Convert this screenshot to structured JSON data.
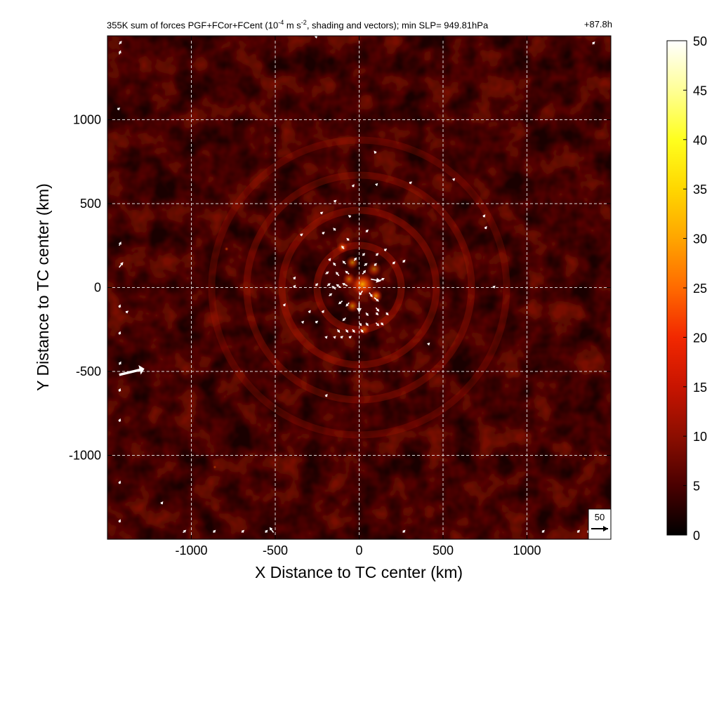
{
  "chart_data": {
    "type": "heatmap",
    "title": {
      "prefix": "355K sum of forces PGF+FCor+FCent (10",
      "exp1": "-4",
      "mid": " m s",
      "exp2": "-2",
      "suffix": ", shading and vectors); min SLP= 949.81hPa",
      "time": "+87.8h"
    },
    "xlabel": "X Distance to TC center (km)",
    "ylabel": "Y Distance to TC center (km)",
    "xlim": [
      -1500,
      1500
    ],
    "ylim": [
      -1500,
      1500
    ],
    "x_ticks": [
      -1000,
      -500,
      0,
      500,
      1000
    ],
    "y_ticks": [
      -1000,
      -500,
      0,
      500,
      1000
    ],
    "grid": true,
    "colorbar": {
      "range": [
        0,
        50
      ],
      "ticks": [
        0,
        5,
        10,
        15,
        20,
        25,
        30,
        35,
        40,
        45,
        50
      ],
      "colors": [
        "#000000",
        "#4a0000",
        "#8c0e00",
        "#c81400",
        "#f22800",
        "#ff6a00",
        "#ffa500",
        "#ffd700",
        "#ffff1e",
        "#ffff96",
        "#ffffff"
      ]
    },
    "reference_vector": {
      "label": "50",
      "magnitude": 50
    },
    "vectors": [
      {
        "x": -1430,
        "y": 1450,
        "u": 8,
        "v": 10
      },
      {
        "x": -1430,
        "y": 1390,
        "u": 5,
        "v": 12
      },
      {
        "x": -1430,
        "y": 250,
        "u": 6,
        "v": 12
      },
      {
        "x": -1430,
        "y": 120,
        "u": 12,
        "v": 16
      },
      {
        "x": -1430,
        "y": -120,
        "u": 4,
        "v": 10
      },
      {
        "x": -1430,
        "y": -280,
        "u": 4,
        "v": 10
      },
      {
        "x": -1430,
        "y": -460,
        "u": 6,
        "v": 10
      },
      {
        "x": -1430,
        "y": -520,
        "u": 75,
        "v": 18
      },
      {
        "x": -1430,
        "y": -620,
        "u": 4,
        "v": 10
      },
      {
        "x": -1430,
        "y": -800,
        "u": 4,
        "v": 10
      },
      {
        "x": -1430,
        "y": -1170,
        "u": 4,
        "v": 10
      },
      {
        "x": -1430,
        "y": -1400,
        "u": 4,
        "v": 10
      },
      {
        "x": -1440,
        "y": 1060,
        "u": 8,
        "v": 6
      },
      {
        "x": -1390,
        "y": -150,
        "u": 8,
        "v": 6
      },
      {
        "x": -1180,
        "y": -1290,
        "u": 6,
        "v": 8
      },
      {
        "x": -1050,
        "y": -1460,
        "u": 10,
        "v": 8
      },
      {
        "x": -510,
        "y": -1460,
        "u": -12,
        "v": 16
      },
      {
        "x": -700,
        "y": -1460,
        "u": 8,
        "v": 8
      },
      {
        "x": -260,
        "y": 1490,
        "u": 6,
        "v": 6
      },
      {
        "x": 100,
        "y": 800,
        "u": -6,
        "v": 8
      },
      {
        "x": -40,
        "y": 600,
        "u": 6,
        "v": 8
      },
      {
        "x": 100,
        "y": 610,
        "u": 6,
        "v": 6
      },
      {
        "x": 300,
        "y": 620,
        "u": 8,
        "v": 6
      },
      {
        "x": 560,
        "y": 640,
        "u": 6,
        "v": 6
      },
      {
        "x": 740,
        "y": 420,
        "u": 6,
        "v": 8
      },
      {
        "x": 750,
        "y": 350,
        "u": 6,
        "v": 8
      },
      {
        "x": -150,
        "y": 510,
        "u": 8,
        "v": 6
      },
      {
        "x": -230,
        "y": 440,
        "u": 8,
        "v": 6
      },
      {
        "x": -50,
        "y": 420,
        "u": -8,
        "v": 6
      },
      {
        "x": -350,
        "y": 310,
        "u": 8,
        "v": 6
      },
      {
        "x": -220,
        "y": 320,
        "u": 8,
        "v": 6
      },
      {
        "x": -140,
        "y": 340,
        "u": -8,
        "v": 8
      },
      {
        "x": 40,
        "y": 330,
        "u": 8,
        "v": 8
      },
      {
        "x": -60,
        "y": 280,
        "u": -8,
        "v": 8
      },
      {
        "x": -90,
        "y": 230,
        "u": -8,
        "v": 10
      },
      {
        "x": 20,
        "y": 190,
        "u": 8,
        "v": 8
      },
      {
        "x": 100,
        "y": 190,
        "u": 8,
        "v": 8
      },
      {
        "x": 150,
        "y": 220,
        "u": 8,
        "v": 6
      },
      {
        "x": -180,
        "y": 160,
        "u": 6,
        "v": 8
      },
      {
        "x": -140,
        "y": 130,
        "u": -8,
        "v": 10
      },
      {
        "x": -80,
        "y": 140,
        "u": -10,
        "v": 10
      },
      {
        "x": -30,
        "y": 160,
        "u": 8,
        "v": 10
      },
      {
        "x": 30,
        "y": 130,
        "u": 10,
        "v": 8
      },
      {
        "x": 90,
        "y": 130,
        "u": 8,
        "v": 8
      },
      {
        "x": 200,
        "y": 140,
        "u": 8,
        "v": 8
      },
      {
        "x": 260,
        "y": 150,
        "u": 8,
        "v": 8
      },
      {
        "x": -200,
        "y": 80,
        "u": 10,
        "v": 8
      },
      {
        "x": -120,
        "y": 70,
        "u": -10,
        "v": 12
      },
      {
        "x": -60,
        "y": 80,
        "u": -12,
        "v": 10
      },
      {
        "x": 20,
        "y": 80,
        "u": 10,
        "v": 12
      },
      {
        "x": 70,
        "y": 50,
        "u": 30,
        "v": -6
      },
      {
        "x": 120,
        "y": 40,
        "u": 16,
        "v": 8
      },
      {
        "x": -390,
        "y": 50,
        "u": 6,
        "v": 8
      },
      {
        "x": -390,
        "y": 0,
        "u": 6,
        "v": 8
      },
      {
        "x": -260,
        "y": 10,
        "u": 8,
        "v": 8
      },
      {
        "x": -190,
        "y": 10,
        "u": 10,
        "v": 8
      },
      {
        "x": -140,
        "y": -10,
        "u": -12,
        "v": 10
      },
      {
        "x": -110,
        "y": 0,
        "u": -14,
        "v": 10
      },
      {
        "x": -70,
        "y": 10,
        "u": -16,
        "v": 8
      },
      {
        "x": 20,
        "y": -20,
        "u": -10,
        "v": -14
      },
      {
        "x": 60,
        "y": -30,
        "u": 10,
        "v": -14
      },
      {
        "x": 90,
        "y": -60,
        "u": 14,
        "v": -12
      },
      {
        "x": -180,
        "y": -50,
        "u": 10,
        "v": 8
      },
      {
        "x": -100,
        "y": -80,
        "u": -12,
        "v": -10
      },
      {
        "x": -60,
        "y": -90,
        "u": -10,
        "v": -12
      },
      {
        "x": 0,
        "y": -90,
        "u": 0,
        "v": -30
      },
      {
        "x": 100,
        "y": -120,
        "u": 10,
        "v": -12
      },
      {
        "x": -450,
        "y": -110,
        "u": 6,
        "v": 8
      },
      {
        "x": -300,
        "y": -150,
        "u": 6,
        "v": 8
      },
      {
        "x": -220,
        "y": -150,
        "u": 6,
        "v": 8
      },
      {
        "x": -80,
        "y": -180,
        "u": -10,
        "v": -10
      },
      {
        "x": 40,
        "y": -150,
        "u": 8,
        "v": -10
      },
      {
        "x": 100,
        "y": -150,
        "u": 8,
        "v": -8
      },
      {
        "x": 160,
        "y": -150,
        "u": 8,
        "v": -8
      },
      {
        "x": -340,
        "y": -210,
        "u": 6,
        "v": 6
      },
      {
        "x": -260,
        "y": -210,
        "u": 8,
        "v": 6
      },
      {
        "x": 0,
        "y": -210,
        "u": 8,
        "v": -10
      },
      {
        "x": 40,
        "y": -210,
        "u": 8,
        "v": -10
      },
      {
        "x": 100,
        "y": -210,
        "u": 10,
        "v": -10
      },
      {
        "x": 130,
        "y": -210,
        "u": 8,
        "v": -8
      },
      {
        "x": -130,
        "y": -250,
        "u": 8,
        "v": -10
      },
      {
        "x": -80,
        "y": -250,
        "u": 8,
        "v": -10
      },
      {
        "x": -40,
        "y": -250,
        "u": 8,
        "v": -10
      },
      {
        "x": 10,
        "y": -250,
        "u": 8,
        "v": -10
      },
      {
        "x": -200,
        "y": -300,
        "u": 6,
        "v": 6
      },
      {
        "x": -150,
        "y": -300,
        "u": 6,
        "v": 6
      },
      {
        "x": -110,
        "y": -300,
        "u": 8,
        "v": 6
      },
      {
        "x": -60,
        "y": -300,
        "u": 8,
        "v": 6
      },
      {
        "x": 410,
        "y": -340,
        "u": 6,
        "v": 6
      },
      {
        "x": 800,
        "y": 0,
        "u": 6,
        "v": 6
      },
      {
        "x": -200,
        "y": -650,
        "u": 6,
        "v": 8
      },
      {
        "x": 260,
        "y": -1460,
        "u": 8,
        "v": 8
      },
      {
        "x": 1360,
        "y": -1460,
        "u": 8,
        "v": 8
      },
      {
        "x": 1300,
        "y": -1460,
        "u": 8,
        "v": 8
      },
      {
        "x": 1090,
        "y": -1460,
        "u": 8,
        "v": 8
      },
      {
        "x": 1390,
        "y": 1450,
        "u": 8,
        "v": 8
      },
      {
        "x": -560,
        "y": -1460,
        "u": 8,
        "v": 8
      },
      {
        "x": -870,
        "y": -1460,
        "u": 8,
        "v": 8
      }
    ],
    "hotspots": [
      {
        "x": 20,
        "y": 20,
        "value": 32,
        "r": 70
      },
      {
        "x": -40,
        "y": 150,
        "value": 22,
        "r": 40
      },
      {
        "x": 90,
        "y": 110,
        "value": 18,
        "r": 45
      },
      {
        "x": -100,
        "y": 240,
        "value": 20,
        "r": 35
      },
      {
        "x": -40,
        "y": -110,
        "value": 22,
        "r": 40
      },
      {
        "x": 30,
        "y": -250,
        "value": 17,
        "r": 35
      },
      {
        "x": 100,
        "y": -50,
        "value": 26,
        "r": 40
      },
      {
        "x": -60,
        "y": 50,
        "value": 20,
        "r": 40
      },
      {
        "x": -790,
        "y": 230,
        "value": 16,
        "r": 12
      },
      {
        "x": -860,
        "y": -1070,
        "value": 14,
        "r": 10
      },
      {
        "x": 1340,
        "y": -1020,
        "value": 12,
        "r": 12
      }
    ]
  }
}
